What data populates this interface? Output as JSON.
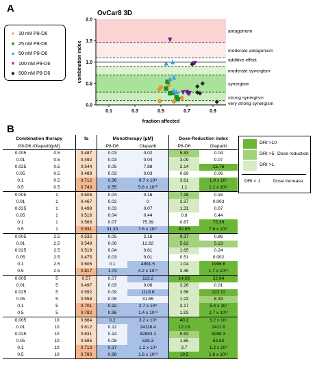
{
  "panels": {
    "a_label": "A",
    "b_label": "B"
  },
  "chart_data": [
    {
      "type": "scatter",
      "title": "OvCar8 3D",
      "xlabel": "fraction affected",
      "ylabel": "combination index",
      "xlim": [
        0,
        1
      ],
      "ylim": [
        0,
        2.0
      ],
      "xticks": [
        "0.1",
        "0.3",
        "0.5",
        "0.7",
        "0.9"
      ],
      "yticks": [
        "0.0",
        "0.5",
        "1.0",
        "1.5",
        "2.0"
      ],
      "zones": [
        {
          "label": "antagonism",
          "from": 1.45,
          "to": 2.0,
          "color": "#fbd3d3"
        },
        {
          "label": "moderate antagonism",
          "from": 1.1,
          "to": 1.45,
          "color": "#fdeaea"
        },
        {
          "label": "additive effect",
          "from": 0.9,
          "to": 1.1,
          "color": "#ffffff"
        },
        {
          "label": "moderate synergism",
          "from": 0.7,
          "to": 0.9,
          "color": "#d9f2cf"
        },
        {
          "label": "synergism",
          "from": 0.3,
          "to": 0.7,
          "color": "#a9e39a"
        },
        {
          "label": "strong synergism",
          "from": 0.1,
          "to": 0.3,
          "color": "#c9eebd"
        },
        {
          "label": "very strong synergism",
          "from": 0.0,
          "to": 0.1,
          "color": "#e2f6da"
        }
      ],
      "dashed_lines": [
        1.45,
        1.1,
        0.9,
        0.7,
        0.3,
        0.1
      ],
      "solid_lines": [
        1.0
      ],
      "series": [
        {
          "name": "10 nM P8-D6",
          "color": "#e39b2f",
          "marker": "circle",
          "points": [
            [
              0.487,
              0.36
            ],
            [
              0.5,
              0.41
            ],
            [
              0.6,
              0.08
            ],
            [
              0.49,
              0.09
            ],
            [
              0.56,
              0.47
            ],
            [
              0.66,
              0.16
            ]
          ]
        },
        {
          "name": "25 nM P8-D6",
          "color": "#1e8a2e",
          "marker": "square",
          "points": [
            [
              0.55,
              0.54
            ],
            [
              0.54,
              0.38
            ],
            [
              0.59,
              0.28
            ],
            [
              0.62,
              0.18
            ],
            [
              0.57,
              0.27
            ],
            [
              0.63,
              0.13
            ]
          ]
        },
        {
          "name": "50 nM P8-D6",
          "color": "#3aa0e0",
          "marker": "triangle",
          "points": [
            [
              0.54,
              0.97
            ],
            [
              0.6,
              0.64
            ],
            [
              0.59,
              1.0
            ],
            [
              0.57,
              0.6
            ],
            [
              0.62,
              0.3
            ],
            [
              0.6,
              0.33
            ]
          ]
        },
        {
          "name": "100 nM P8-D6",
          "color": "#6a1a8a",
          "marker": "triangle-down",
          "points": [
            [
              0.57,
              1.52
            ],
            [
              0.76,
              0.97
            ],
            [
              0.67,
              0.29
            ],
            [
              0.72,
              0.27
            ],
            [
              0.7,
              0.3
            ],
            [
              0.71,
              0.26
            ]
          ]
        },
        {
          "name": "500 nM P8-D6",
          "color": "#222222",
          "marker": "diamond",
          "points": [
            [
              0.74,
              0.95
            ],
            [
              0.93,
              0.07
            ],
            [
              0.82,
              0.5
            ],
            [
              0.8,
              0.27
            ],
            [
              0.78,
              0.43
            ],
            [
              0.78,
              0.29
            ]
          ]
        }
      ]
    },
    {
      "type": "table",
      "header_groups": [
        "Combination therapy",
        "fa",
        "Monotherapy [µM]",
        "Dose-Reduction index"
      ],
      "columns": [
        "P8-D6 /Olaparib[µM]",
        "",
        "P8-D6",
        "Olaparib",
        "P8-D6",
        "Olaparib"
      ],
      "rows": [
        [
          "0.005",
          "0.5",
          "0.487",
          "0.03",
          "0.02",
          "5.83",
          "0.04"
        ],
        [
          "0.01",
          "0.5",
          "0.492",
          "0.03",
          "0.04",
          "3.09",
          "0.07"
        ],
        [
          "0.025",
          "0.5",
          "0.544",
          "0.05",
          "7.88",
          "2.14",
          "15.76"
        ],
        [
          "0.05",
          "0.5",
          "0.489",
          "0.03",
          "0.03",
          "0.69",
          "0.06"
        ],
        [
          "0.1",
          "0.5",
          "0.712",
          "0.36",
          "9.7 x 10⁸",
          "3.61",
          "1.9 x 10⁹"
        ],
        [
          "0.5",
          "0.5",
          "0.743",
          "0.55",
          "5.6 x 10¹⁰",
          "1.1",
          "1.1 x 10¹¹"
        ],
        [
          "0.005",
          "1",
          "0.506",
          "0.04",
          "0.16",
          "7.16",
          "0.16"
        ],
        [
          "0.01",
          "1",
          "0.467",
          "0.02",
          "0",
          "2.37",
          "0.003"
        ],
        [
          "0.025",
          "1",
          "0.498",
          "0.03",
          "0.07",
          "1.31",
          "0.07"
        ],
        [
          "0.05",
          "1",
          "0.516",
          "0.04",
          "0.44",
          "0.8",
          "0.44"
        ],
        [
          "0.1",
          "1",
          "0.566",
          "0.07",
          "75.39",
          "0.67",
          "75.39"
        ],
        [
          "0.5",
          "1",
          "0.931",
          "31.33",
          "7.6 x 10²⁷",
          "62.65",
          "7.6 x 10²⁷"
        ],
        [
          "0.005",
          "2.5",
          "0.532",
          "0.05",
          "2.16",
          "9.37",
          "0.86"
        ],
        [
          "0.01",
          "2.5",
          "0.549",
          "0.06",
          "12.82",
          "5.62",
          "5.13"
        ],
        [
          "0.025",
          "2.5",
          "0.519",
          "0.04",
          "0.61",
          "1.65",
          "0.24"
        ],
        [
          "0.05",
          "2.5",
          "0.475",
          "0.03",
          "0.01",
          "0.51",
          "0.002"
        ],
        [
          "0.1",
          "2.5",
          "0.606",
          "0.1",
          "4991.5",
          "1.04",
          "1996.6"
        ],
        [
          "0.5",
          "2.5",
          "0.817",
          "1.73",
          "4.2 x 10¹⁵",
          "3.46",
          "1.7 x 10¹⁵"
        ],
        [
          "0.005",
          "5",
          "0.57",
          "0.07",
          "113.2",
          "14.06",
          "22.64"
        ],
        [
          "0.01",
          "5",
          "0.497",
          "0.03",
          "0.06",
          "3.26",
          "0.01"
        ],
        [
          "0.025",
          "5",
          "0.592",
          "0.09",
          "1118.6",
          "3.56",
          "223.72"
        ],
        [
          "0.05",
          "5",
          "0.558",
          "0.06",
          "31.65",
          "1.23",
          "6.33"
        ],
        [
          "0.1",
          "5",
          "0.701",
          "0.32",
          "2.7 x 10⁸",
          "3.17",
          "5.4 x 10⁷"
        ],
        [
          "0.5",
          "5",
          "0.782",
          "0.96",
          "1.4 x 10¹³",
          "1.93",
          "2.7 x 10¹²"
        ],
        [
          "0.005",
          "10",
          "0.664",
          "0.2",
          "3.2 x 10⁶",
          "40.2",
          "3.2 x 10⁵"
        ],
        [
          "0.01",
          "10",
          "0.612",
          "0.12",
          "24118.4",
          "12.19",
          "2411.8"
        ],
        [
          "0.025",
          "10",
          "0.631",
          "0.14",
          "82883.1",
          "5.53",
          "8288.3"
        ],
        [
          "0.05",
          "10",
          "0.585",
          "0.08",
          "535.3",
          "1.65",
          "53.53"
        ],
        [
          "0.1",
          "10",
          "0.713",
          "0.37",
          "1.2 x 10⁹",
          "3.7",
          "1.2 x 10⁸"
        ],
        [
          "0.5",
          "10",
          "0.783",
          "0.98",
          "1.6 x 10¹³",
          "19.5",
          "1.6 x 10¹²"
        ]
      ]
    }
  ],
  "dri_legend": {
    "items": [
      {
        "swatch": "DRI >10",
        "color": "#6bb637"
      },
      {
        "swatch": "DRI >5",
        "label": "Dose reduction",
        "color": "#a3d17c"
      },
      {
        "swatch": "DRI >1",
        "color": "#d6ebc4"
      },
      {
        "swatch": "DRI < 1",
        "label": "Dose increase",
        "color": "#ffffff"
      }
    ]
  }
}
